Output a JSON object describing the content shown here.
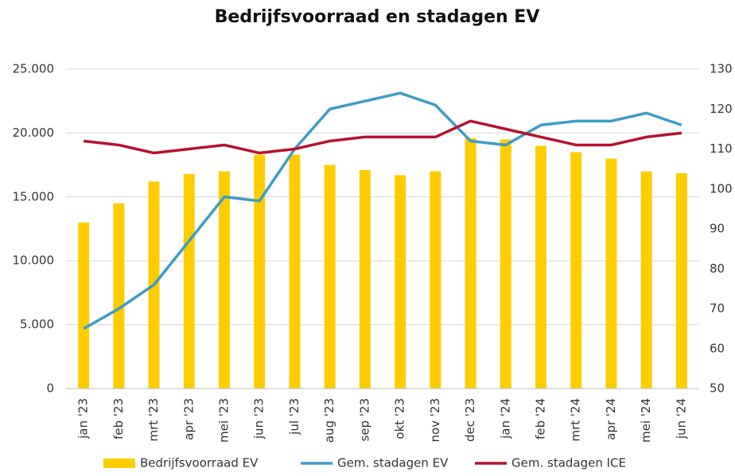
{
  "chart_data": {
    "type": "bar_line",
    "title": "Bedrijfsvoorraad en stadagen EV",
    "categories": [
      "jan '23",
      "feb '23",
      "mrt '23",
      "apr '23",
      "mei '23",
      "jun '23",
      "jul '23",
      "aug '23",
      "sep '23",
      "okt '23",
      "nov '23",
      "dec '23",
      "jan '24",
      "feb '24",
      "mrt '24",
      "apr '24",
      "mei '24",
      "jun '24"
    ],
    "series": [
      {
        "name": "Bedrijfsvoorraad EV",
        "type": "bar",
        "axis": "y",
        "color": "#ffcc00",
        "values": [
          13000,
          14500,
          16200,
          16800,
          17000,
          18300,
          18300,
          17500,
          17100,
          16700,
          17000,
          19600,
          19500,
          19000,
          18500,
          18000,
          17000,
          16850
        ]
      },
      {
        "name": "Gem. stadagen EV",
        "type": "line",
        "axis": "y2",
        "color": "#3d9cc8",
        "values": [
          65,
          70,
          76,
          87,
          98,
          97,
          110,
          120,
          122,
          124,
          121,
          112,
          111,
          116,
          117,
          117,
          119,
          116
        ]
      },
      {
        "name": "Gem. stadagen ICE",
        "type": "line",
        "axis": "y2",
        "color": "#b5122e",
        "values": [
          112,
          111,
          109,
          110,
          111,
          109,
          110,
          112,
          113,
          113,
          113,
          117,
          115,
          113,
          111,
          111,
          113,
          114
        ]
      }
    ],
    "ylim": [
      0,
      25000
    ],
    "yticks": [
      0,
      {
        "value": 5000,
        "label": "5.000"
      },
      {
        "value": 10000,
        "label": "10.000"
      },
      {
        "value": 15000,
        "label": "15.000"
      },
      {
        "value": 20000,
        "label": "20.000"
      },
      {
        "value": 25000,
        "label": "25.000"
      }
    ],
    "y2lim": [
      50,
      130
    ],
    "y2ticks": [
      50,
      60,
      70,
      80,
      90,
      100,
      110,
      120,
      130
    ],
    "grid": true,
    "legend": "bottom"
  }
}
